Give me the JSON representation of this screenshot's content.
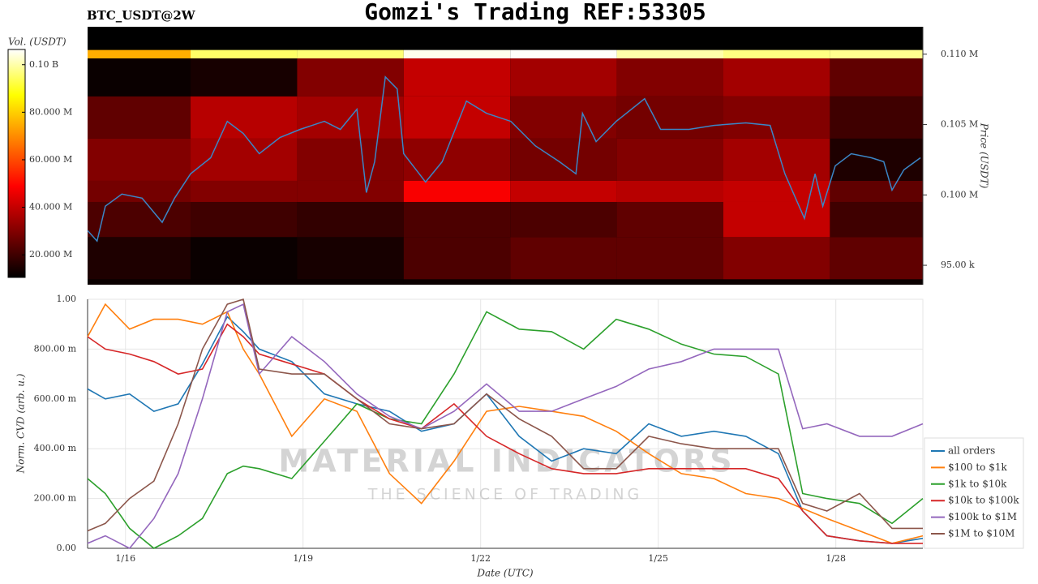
{
  "title": "Gomzi's Trading REF:53305",
  "chart_data": [
    {
      "type": "heatmap_line",
      "label": "BTC_USDT@2W",
      "colorbar_label": "Vol. (USDT)",
      "ylabel": "Price (USDT)",
      "clim": [
        10500000,
        106400000
      ],
      "cticks": [
        {
          "value": 20000000,
          "label": "20.000 M"
        },
        {
          "value": 40000000,
          "label": "40.000 M"
        },
        {
          "value": 60000000,
          "label": "60.000 M"
        },
        {
          "value": 80000000,
          "label": "80.000 M"
        },
        {
          "value": 100000000,
          "label": "0.10 B"
        }
      ],
      "xlim": [
        15.36,
        29.47
      ],
      "ylim": [
        93620,
        111950
      ],
      "yticks": [
        {
          "value": 95000,
          "label": "95.00 k"
        },
        {
          "value": 100000,
          "label": "0.100 M"
        },
        {
          "value": 105000,
          "label": "0.105 M"
        },
        {
          "value": 110000,
          "label": "0.110 M"
        }
      ],
      "heatmap": {
        "x_edges": [
          15.36,
          17.1,
          18.9,
          20.7,
          22.5,
          24.3,
          26.1,
          27.9,
          29.47
        ],
        "rows": [
          {
            "low": 109700,
            "high": 110300,
            "values": [
              75000000,
              95000000,
              96000000,
              105000000,
              106000000,
              100000000,
              97000000,
              98000000
            ]
          },
          {
            "low": 107000,
            "high": 109700,
            "values": [
              12000000,
              14000000,
              30000000,
              40000000,
              35000000,
              30000000,
              35000000,
              25000000
            ]
          },
          {
            "low": 104000,
            "high": 107000,
            "values": [
              25000000,
              38000000,
              35000000,
              40000000,
              30000000,
              28000000,
              30000000,
              20000000
            ]
          },
          {
            "low": 101000,
            "high": 104000,
            "values": [
              30000000,
              35000000,
              30000000,
              32000000,
              28000000,
              30000000,
              35000000,
              15000000
            ]
          },
          {
            "low": 99500,
            "high": 101000,
            "values": [
              28000000,
              30000000,
              30000000,
              48000000,
              40000000,
              38000000,
              40000000,
              25000000
            ]
          },
          {
            "low": 97000,
            "high": 99500,
            "values": [
              22000000,
              20000000,
              18000000,
              22000000,
              22000000,
              25000000,
              40000000,
              20000000
            ]
          },
          {
            "low": 94000,
            "high": 97000,
            "values": [
              15000000,
              12000000,
              14000000,
              22000000,
              25000000,
              25000000,
              30000000,
              25000000
            ]
          },
          {
            "low": 93620,
            "high": 94000,
            "values": [
              12000000,
              12000000,
              12000000,
              12000000,
              12000000,
              12000000,
              12000000,
              12000000
            ]
          }
        ]
      },
      "price": {
        "color": "#3b86c6",
        "x": [
          15.36,
          15.52,
          15.66,
          15.94,
          16.28,
          16.62,
          16.83,
          17.1,
          17.44,
          17.72,
          17.99,
          18.26,
          18.61,
          18.95,
          19.36,
          19.63,
          19.91,
          20.07,
          20.21,
          20.39,
          20.59,
          20.7,
          21.07,
          21.35,
          21.76,
          22.1,
          22.51,
          22.92,
          23.33,
          23.61,
          23.72,
          23.95,
          24.29,
          24.77,
          25.04,
          25.52,
          25.94,
          26.48,
          26.89,
          27.14,
          27.47,
          27.65,
          27.78,
          27.99,
          28.26,
          28.6,
          28.81,
          28.95,
          29.15,
          29.43
        ],
        "values": [
          97470,
          96720,
          99200,
          100060,
          99770,
          98050,
          99770,
          101500,
          102640,
          105230,
          104370,
          102930,
          104080,
          104660,
          105230,
          104660,
          106090,
          100170,
          102360,
          108390,
          107530,
          102930,
          100920,
          102360,
          106670,
          105800,
          105230,
          103500,
          102360,
          101500,
          105800,
          103790,
          105230,
          106840,
          104660,
          104660,
          104940,
          105120,
          104940,
          101500,
          98330,
          101500,
          99200,
          102070,
          102930,
          102640,
          102360,
          100340,
          101780,
          102640
        ]
      }
    },
    {
      "type": "line",
      "xlabel": "Date (UTC)",
      "ylabel": "Norm. CVD (arb. u.)",
      "watermark": "MATERIAL INDICATORS",
      "watermark_sub": "THE SCIENCE OF TRADING",
      "xlim": [
        15.36,
        29.47
      ],
      "ylim": [
        0,
        1
      ],
      "grid": true,
      "legend": "lower right outside",
      "xticks": [
        {
          "value": 16,
          "label": "1/16"
        },
        {
          "value": 19,
          "label": "1/19"
        },
        {
          "value": 22,
          "label": "1/22"
        },
        {
          "value": 25,
          "label": "1/25"
        },
        {
          "value": 28,
          "label": "1/28"
        }
      ],
      "yticks": [
        {
          "value": 0,
          "label": "0.00"
        },
        {
          "value": 0.2,
          "label": "200.00 m"
        },
        {
          "value": 0.4,
          "label": "400.00 m"
        },
        {
          "value": 0.6,
          "label": "600.00 m"
        },
        {
          "value": 0.8,
          "label": "800.00 m"
        },
        {
          "value": 1,
          "label": "1.00"
        }
      ],
      "x": [
        15.36,
        15.66,
        16.07,
        16.48,
        16.89,
        17.3,
        17.72,
        17.99,
        18.26,
        18.81,
        19.36,
        19.91,
        20.46,
        21.0,
        21.55,
        22.1,
        22.65,
        23.2,
        23.74,
        24.29,
        24.84,
        25.39,
        25.94,
        26.48,
        27.03,
        27.44,
        27.85,
        28.4,
        28.95,
        29.47
      ],
      "series": [
        {
          "name": "all orders",
          "color": "#1f77b4",
          "values": [
            0.64,
            0.6,
            0.62,
            0.55,
            0.58,
            0.74,
            0.93,
            0.87,
            0.8,
            0.75,
            0.62,
            0.58,
            0.55,
            0.47,
            0.5,
            0.62,
            0.45,
            0.35,
            0.4,
            0.38,
            0.5,
            0.45,
            0.47,
            0.45,
            0.38,
            0.15,
            0.05,
            0.03,
            0.02,
            0.04
          ]
        },
        {
          "name": "$100 to $1k",
          "color": "#ff7f0e",
          "values": [
            0.85,
            0.98,
            0.88,
            0.92,
            0.92,
            0.9,
            0.95,
            0.8,
            0.7,
            0.45,
            0.6,
            0.55,
            0.3,
            0.18,
            0.35,
            0.55,
            0.57,
            0.55,
            0.53,
            0.47,
            0.38,
            0.3,
            0.28,
            0.22,
            0.2,
            0.16,
            0.12,
            0.07,
            0.02,
            0.05
          ]
        },
        {
          "name": "$1k to $10k",
          "color": "#2ca02c",
          "values": [
            0.28,
            0.22,
            0.08,
            0.0,
            0.05,
            0.12,
            0.3,
            0.33,
            0.32,
            0.28,
            0.43,
            0.58,
            0.52,
            0.5,
            0.7,
            0.95,
            0.88,
            0.87,
            0.8,
            0.92,
            0.88,
            0.82,
            0.78,
            0.77,
            0.7,
            0.22,
            0.2,
            0.18,
            0.1,
            0.2
          ]
        },
        {
          "name": "$10k to $100k",
          "color": "#d62728",
          "values": [
            0.85,
            0.8,
            0.78,
            0.75,
            0.7,
            0.72,
            0.9,
            0.85,
            0.78,
            0.74,
            0.7,
            0.6,
            0.52,
            0.48,
            0.58,
            0.45,
            0.38,
            0.32,
            0.3,
            0.3,
            0.32,
            0.32,
            0.32,
            0.32,
            0.28,
            0.15,
            0.05,
            0.03,
            0.02,
            0.02
          ]
        },
        {
          "name": "$100k to $1M",
          "color": "#9467bd",
          "values": [
            0.02,
            0.05,
            0.0,
            0.12,
            0.3,
            0.6,
            0.95,
            0.98,
            0.7,
            0.85,
            0.75,
            0.62,
            0.53,
            0.48,
            0.55,
            0.66,
            0.55,
            0.55,
            0.6,
            0.65,
            0.72,
            0.75,
            0.8,
            0.8,
            0.8,
            0.48,
            0.5,
            0.45,
            0.45,
            0.5
          ]
        },
        {
          "name": "$1M to $10M",
          "color": "#8c564b",
          "values": [
            0.07,
            0.1,
            0.2,
            0.27,
            0.5,
            0.8,
            0.98,
            1.0,
            0.72,
            0.7,
            0.7,
            0.6,
            0.5,
            0.48,
            0.5,
            0.62,
            0.52,
            0.45,
            0.32,
            0.32,
            0.45,
            0.42,
            0.4,
            0.4,
            0.4,
            0.18,
            0.15,
            0.22,
            0.08,
            0.08
          ]
        }
      ]
    }
  ]
}
